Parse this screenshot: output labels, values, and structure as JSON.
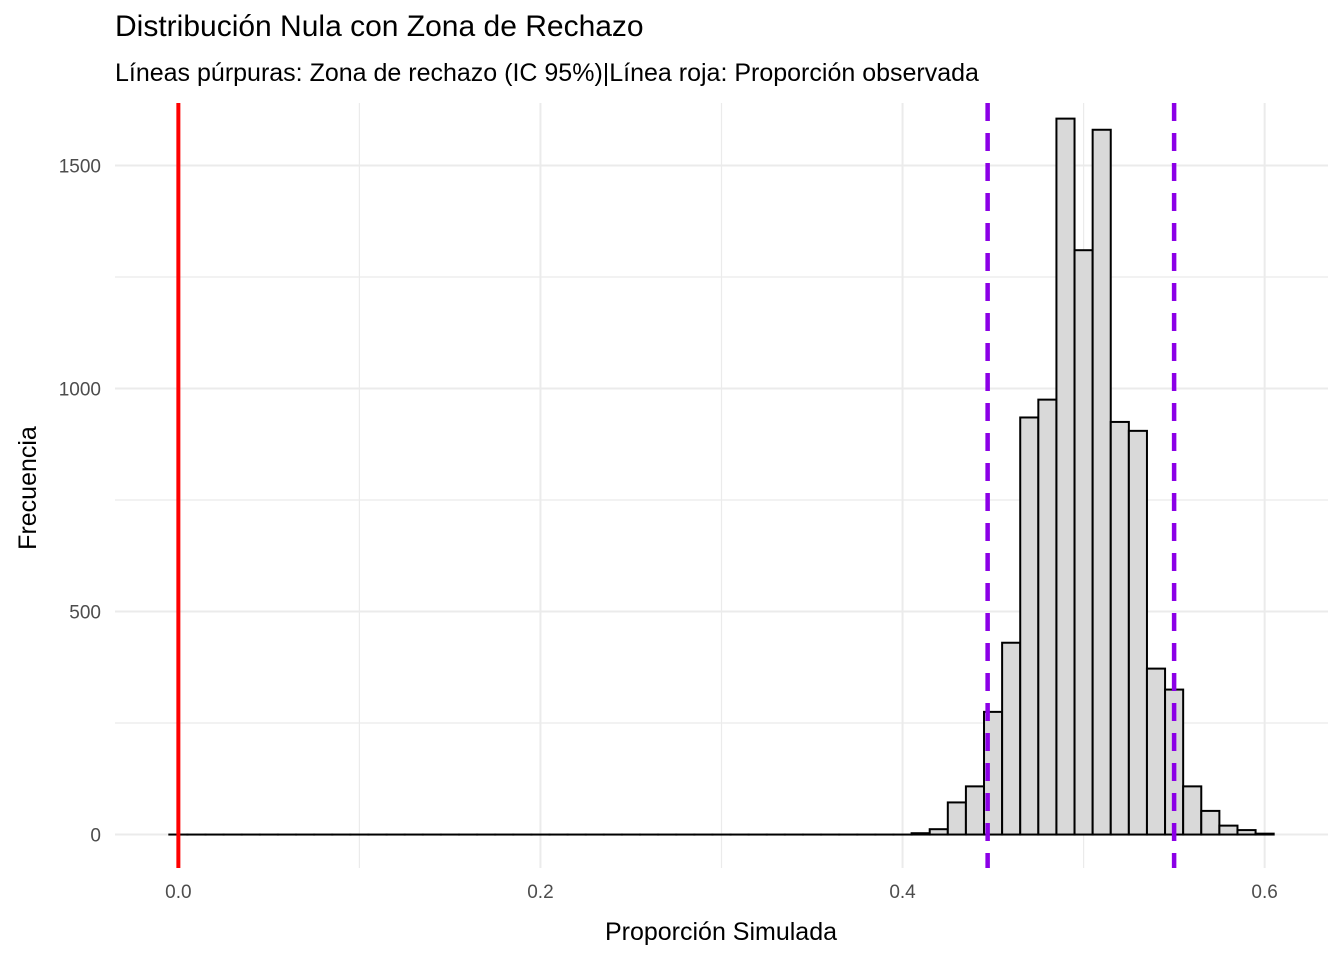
{
  "chart_data": {
    "type": "bar",
    "title": "Distribución Nula con Zona de Rechazo",
    "subtitle": "Líneas púrpuras: Zona de rechazo (IC 95%)|Línea roja: Proporción observada",
    "xlabel": "Proporción Simulada",
    "ylabel": "Frecuencia",
    "xlim": [
      -0.035,
      0.635
    ],
    "ylim": [
      -75,
      1640
    ],
    "x_ticks": [
      "0.0",
      "0.2",
      "0.4",
      "0.6"
    ],
    "y_ticks": [
      "0",
      "500",
      "1000",
      "1500"
    ],
    "grid": true,
    "legend": "none",
    "bin_width": 0.01,
    "bins": [
      {
        "x": 0.0,
        "count": 0
      },
      {
        "x": 0.01,
        "count": 0
      },
      {
        "x": 0.02,
        "count": 0
      },
      {
        "x": 0.03,
        "count": 0
      },
      {
        "x": 0.04,
        "count": 0
      },
      {
        "x": 0.05,
        "count": 0
      },
      {
        "x": 0.06,
        "count": 0
      },
      {
        "x": 0.07,
        "count": 0
      },
      {
        "x": 0.08,
        "count": 0
      },
      {
        "x": 0.09,
        "count": 0
      },
      {
        "x": 0.1,
        "count": 0
      },
      {
        "x": 0.11,
        "count": 0
      },
      {
        "x": 0.12,
        "count": 0
      },
      {
        "x": 0.13,
        "count": 0
      },
      {
        "x": 0.14,
        "count": 0
      },
      {
        "x": 0.15,
        "count": 0
      },
      {
        "x": 0.16,
        "count": 0
      },
      {
        "x": 0.17,
        "count": 0
      },
      {
        "x": 0.18,
        "count": 0
      },
      {
        "x": 0.19,
        "count": 0
      },
      {
        "x": 0.2,
        "count": 0
      },
      {
        "x": 0.21,
        "count": 0
      },
      {
        "x": 0.22,
        "count": 0
      },
      {
        "x": 0.23,
        "count": 0
      },
      {
        "x": 0.24,
        "count": 0
      },
      {
        "x": 0.25,
        "count": 0
      },
      {
        "x": 0.26,
        "count": 0
      },
      {
        "x": 0.27,
        "count": 0
      },
      {
        "x": 0.28,
        "count": 0
      },
      {
        "x": 0.29,
        "count": 0
      },
      {
        "x": 0.3,
        "count": 0
      },
      {
        "x": 0.31,
        "count": 0
      },
      {
        "x": 0.32,
        "count": 0
      },
      {
        "x": 0.33,
        "count": 0
      },
      {
        "x": 0.34,
        "count": 0
      },
      {
        "x": 0.35,
        "count": 0
      },
      {
        "x": 0.36,
        "count": 0
      },
      {
        "x": 0.37,
        "count": 0
      },
      {
        "x": 0.38,
        "count": 0
      },
      {
        "x": 0.39,
        "count": 0
      },
      {
        "x": 0.4,
        "count": 0
      },
      {
        "x": 0.41,
        "count": 3
      },
      {
        "x": 0.42,
        "count": 12
      },
      {
        "x": 0.43,
        "count": 72
      },
      {
        "x": 0.44,
        "count": 108
      },
      {
        "x": 0.45,
        "count": 275
      },
      {
        "x": 0.46,
        "count": 430
      },
      {
        "x": 0.47,
        "count": 935
      },
      {
        "x": 0.48,
        "count": 975
      },
      {
        "x": 0.49,
        "count": 1605
      },
      {
        "x": 0.5,
        "count": 1310
      },
      {
        "x": 0.51,
        "count": 1580
      },
      {
        "x": 0.52,
        "count": 925
      },
      {
        "x": 0.53,
        "count": 905
      },
      {
        "x": 0.54,
        "count": 372
      },
      {
        "x": 0.55,
        "count": 325
      },
      {
        "x": 0.56,
        "count": 108
      },
      {
        "x": 0.57,
        "count": 53
      },
      {
        "x": 0.58,
        "count": 20
      },
      {
        "x": 0.59,
        "count": 10
      },
      {
        "x": 0.6,
        "count": 2
      }
    ],
    "reference_lines": [
      {
        "x": 0.0,
        "color": "#ff0000",
        "style": "solid"
      },
      {
        "x": 0.447,
        "color": "#8b00e6",
        "style": "dashed"
      },
      {
        "x": 0.55,
        "color": "#8b00e6",
        "style": "dashed"
      }
    ],
    "colors": {
      "bar_fill": "#d9d9d9",
      "bar_stroke": "#000000",
      "grid": "#ebebeb",
      "observed": "#ff0000",
      "rejection": "#8b00e6"
    }
  }
}
